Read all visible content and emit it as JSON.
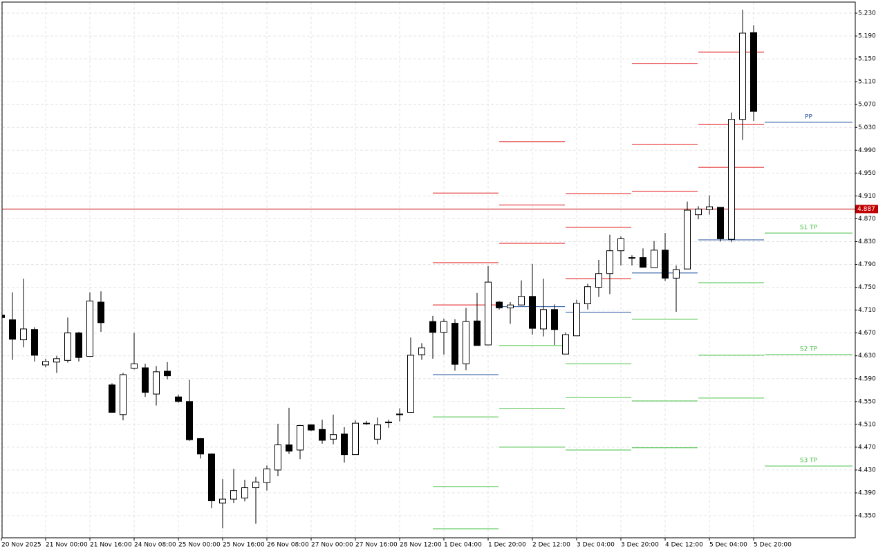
{
  "chart_data": {
    "type": "candlestick",
    "categories": [
      "20 Nov 2025",
      null,
      null,
      null,
      "21 Nov 00:00",
      null,
      null,
      null,
      "21 Nov 16:00",
      null,
      null,
      null,
      "24 Nov 08:00",
      null,
      null,
      null,
      "25 Nov 00:00",
      null,
      null,
      null,
      "25 Nov 16:00",
      null,
      null,
      null,
      "26 Nov 08:00",
      null,
      null,
      null,
      "27 Nov 00:00",
      null,
      null,
      null,
      "27 Nov 16:00",
      null,
      null,
      null,
      "28 Nov 12:00",
      null,
      null,
      null,
      "1 Dec 04:00",
      null,
      null,
      null,
      "1 Dec 20:00",
      null,
      null,
      null,
      "2 Dec 12:00",
      null,
      null,
      null,
      "3 Dec 04:00",
      null,
      null,
      null,
      "3 Dec 20:00",
      null,
      null,
      null,
      "4 Dec 12:00",
      null,
      null,
      null,
      "5 Dec 04:00",
      null,
      null,
      null,
      "5 Dec 20:00"
    ],
    "open": [
      4.701,
      4.693,
      4.658,
      4.676,
      4.614,
      4.619,
      4.622,
      4.67,
      4.629,
      4.724,
      4.579,
      4.527,
      4.608,
      4.609,
      4.563,
      4.603,
      4.558,
      4.55,
      4.485,
      4.458,
      4.372,
      4.379,
      4.381,
      4.399,
      4.408,
      4.43,
      4.474,
      4.465,
      4.509,
      4.501,
      4.484,
      4.493,
      4.457,
      4.512,
      4.484,
      4.514,
      4.527,
      4.531,
      4.632,
      4.69,
      4.671,
      4.687,
      4.616,
      4.691,
      4.649,
      4.724,
      4.714,
      4.719,
      4.734,
      4.677,
      4.711,
      4.633,
      4.665,
      4.721,
      4.75,
      4.774,
      4.814,
      4.801,
      4.802,
      4.784,
      4.815,
      4.766,
      4.782,
      4.877,
      4.886,
      4.89,
      4.834,
      5.044,
      5.196
    ],
    "high": [
      4.702,
      4.741,
      4.765,
      4.68,
      4.625,
      4.63,
      4.697,
      4.672,
      4.741,
      4.743,
      4.582,
      4.6,
      4.67,
      4.616,
      4.612,
      4.619,
      4.562,
      4.588,
      4.486,
      4.459,
      4.414,
      4.432,
      4.413,
      4.418,
      4.438,
      4.511,
      4.539,
      4.509,
      4.51,
      4.518,
      4.527,
      4.505,
      4.517,
      4.516,
      4.522,
      4.518,
      4.538,
      4.662,
      4.652,
      4.7,
      4.695,
      4.694,
      4.714,
      4.74,
      4.787,
      4.726,
      4.724,
      4.762,
      4.791,
      4.765,
      4.72,
      4.671,
      4.728,
      4.756,
      4.798,
      4.842,
      4.839,
      4.806,
      4.818,
      4.831,
      4.845,
      4.788,
      4.9,
      4.892,
      4.911,
      4.89,
      5.056,
      5.236,
      5.209
    ],
    "low": [
      4.696,
      4.623,
      4.645,
      4.62,
      4.61,
      4.6,
      4.618,
      4.62,
      4.629,
      4.672,
      4.531,
      4.517,
      4.606,
      4.558,
      4.543,
      4.589,
      4.548,
      4.481,
      4.45,
      4.363,
      4.328,
      4.372,
      4.375,
      4.336,
      4.394,
      4.419,
      4.458,
      4.449,
      4.498,
      4.476,
      4.475,
      4.443,
      4.457,
      4.509,
      4.475,
      4.504,
      4.515,
      4.531,
      4.623,
      4.625,
      4.632,
      4.604,
      4.605,
      4.648,
      4.649,
      4.711,
      4.686,
      4.718,
      4.667,
      4.664,
      4.649,
      4.633,
      4.665,
      4.711,
      4.733,
      4.738,
      4.788,
      4.788,
      4.785,
      4.784,
      4.761,
      4.707,
      4.782,
      4.869,
      4.877,
      4.83,
      4.829,
      5.008,
      5.041
    ],
    "close": [
      4.697,
      4.659,
      4.677,
      4.631,
      4.62,
      4.625,
      4.67,
      4.627,
      4.726,
      4.688,
      4.531,
      4.597,
      4.616,
      4.566,
      4.602,
      4.595,
      4.55,
      4.483,
      4.458,
      4.376,
      4.379,
      4.394,
      4.399,
      4.409,
      4.432,
      4.474,
      4.463,
      4.508,
      4.5,
      4.482,
      4.492,
      4.457,
      4.512,
      4.511,
      4.509,
      4.513,
      4.528,
      4.631,
      4.644,
      4.671,
      4.69,
      4.615,
      4.69,
      4.648,
      4.759,
      4.714,
      4.719,
      4.734,
      4.678,
      4.711,
      4.676,
      4.667,
      4.722,
      4.751,
      4.774,
      4.814,
      4.835,
      4.802,
      4.785,
      4.815,
      4.766,
      4.781,
      4.885,
      4.887,
      4.891,
      4.835,
      5.044,
      5.195,
      5.058
    ],
    "up_color": "#ffffff",
    "down_color": "#000000",
    "ylim": [
      4.3113,
      5.2494
    ],
    "yticks": [
      {
        "value": 4.35,
        "label": "4.350"
      },
      {
        "value": 4.39,
        "label": "4.390"
      },
      {
        "value": 4.43,
        "label": "4.430"
      },
      {
        "value": 4.47,
        "label": "4.470"
      },
      {
        "value": 4.51,
        "label": "4.510"
      },
      {
        "value": 4.55,
        "label": "4.550"
      },
      {
        "value": 4.59,
        "label": "4.590"
      },
      {
        "value": 4.63,
        "label": "4.630"
      },
      {
        "value": 4.67,
        "label": "4.670"
      },
      {
        "value": 4.71,
        "label": "4.710"
      },
      {
        "value": 4.75,
        "label": "4.750"
      },
      {
        "value": 4.79,
        "label": "4.790"
      },
      {
        "value": 4.83,
        "label": "4.830"
      },
      {
        "value": 4.87,
        "label": "4.870"
      },
      {
        "value": 4.91,
        "label": "4.910"
      },
      {
        "value": 4.95,
        "label": "4.950"
      },
      {
        "value": 4.99,
        "label": "4.990"
      },
      {
        "value": 5.03,
        "label": "5.030"
      },
      {
        "value": 5.07,
        "label": "5.070"
      },
      {
        "value": 5.11,
        "label": "5.110"
      },
      {
        "value": 5.15,
        "label": "5.150"
      },
      {
        "value": 5.19,
        "label": "5.190"
      },
      {
        "value": 5.23,
        "label": "5.230"
      }
    ],
    "grid": true,
    "current_price": 4.887,
    "current_price_color": "#c00000",
    "resistance_color": "#e01010",
    "pivot_color": "#1f4f9f",
    "support_color": "#44c044",
    "pivot_levels": [
      {
        "start": 39,
        "resistance": [
          4.915,
          4.793,
          4.719
        ],
        "pivot": 4.597,
        "support": [
          4.523,
          4.401,
          4.327
        ]
      },
      {
        "start": 45,
        "resistance": [
          5.005,
          4.894,
          4.827
        ],
        "pivot": 4.716,
        "support": [
          4.648,
          4.538,
          4.47
        ]
      },
      {
        "start": 51,
        "resistance": [
          4.914,
          4.855,
          4.765
        ],
        "pivot": 4.706,
        "support": [
          4.616,
          4.557,
          4.465
        ]
      },
      {
        "start": 57,
        "resistance": [
          5.142,
          5.0,
          4.918
        ],
        "pivot": 4.775,
        "support": [
          4.694,
          4.551,
          4.469
        ]
      },
      {
        "start": 63,
        "resistance": [
          5.162,
          5.035,
          4.96
        ],
        "pivot": 4.833,
        "support": [
          4.758,
          4.631,
          4.556
        ]
      },
      {
        "start": 69,
        "resistance": [],
        "pivot": 5.039,
        "support": [
          4.845,
          4.632,
          4.437
        ],
        "pivot_label": "PP",
        "support_labels": [
          "S1 TP",
          "S2 TP",
          "S3 TP"
        ]
      }
    ]
  }
}
